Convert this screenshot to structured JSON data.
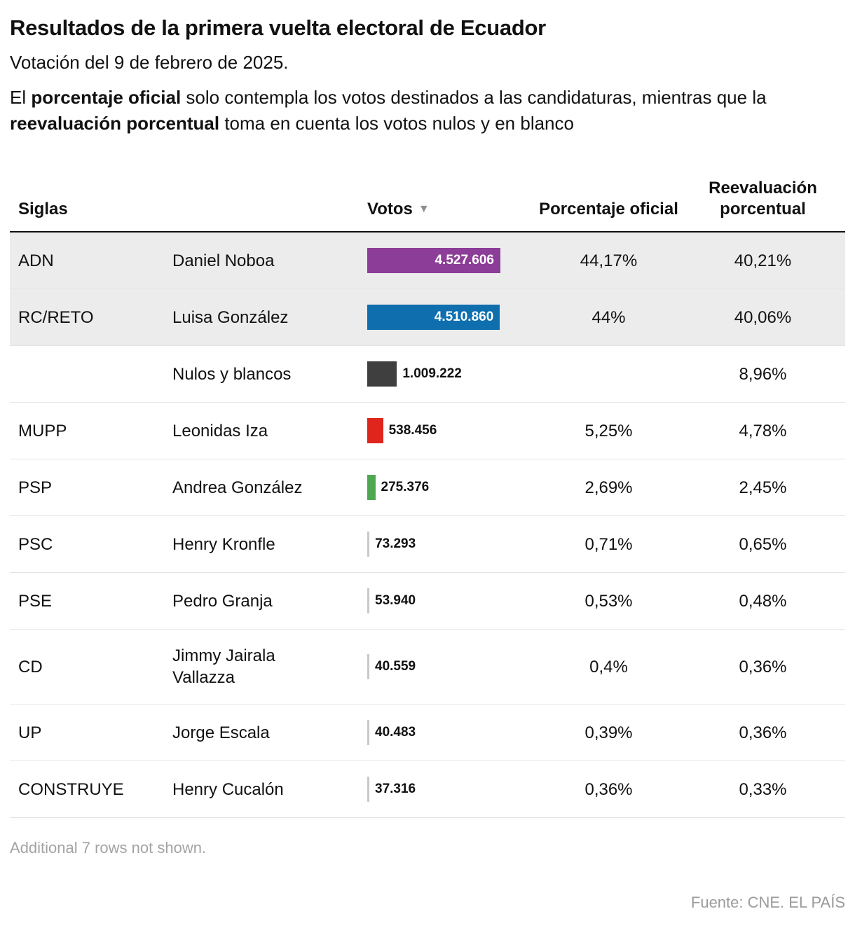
{
  "page": {
    "title": "Resultados de la primera vuelta electoral de Ecuador",
    "subtitle": "Votación del 9 de febrero de 2025.",
    "desc": {
      "p1": "El ",
      "p1_bold": "porcentaje oficial",
      "p2": " solo contempla los votos destinados a las candidaturas, mientras que la ",
      "p2_bold": "reevaluación porcentual",
      "p3": " toma en cuenta los votos nulos y en blanco"
    }
  },
  "table": {
    "columns": {
      "siglas": "Siglas",
      "votos": "Votos",
      "sort_icon": "▼",
      "oficial": "Porcentaje oficial",
      "reevaluacion": "Reevaluación porcentual"
    }
  },
  "chart_data": {
    "type": "bar",
    "orientation": "horizontal",
    "title": "Resultados de la primera vuelta electoral de Ecuador",
    "value_column": "Votos",
    "max_value": 4527606,
    "rows": [
      {
        "siglas": "ADN",
        "candidate": "Daniel Noboa",
        "votes": 4527606,
        "votes_label": "4.527.606",
        "oficial": "44,17%",
        "reevaluacion": "40,21%",
        "bar_color": "#8c3d97",
        "label_inside": true,
        "highlighted": true
      },
      {
        "siglas": "RC/RETO",
        "candidate": "Luisa González",
        "votes": 4510860,
        "votes_label": "4.510.860",
        "oficial": "44%",
        "reevaluacion": "40,06%",
        "bar_color": "#0e6eae",
        "label_inside": true,
        "highlighted": true
      },
      {
        "siglas": "",
        "candidate": "Nulos y blancos",
        "votes": 1009222,
        "votes_label": "1.009.222",
        "oficial": "",
        "reevaluacion": "8,96%",
        "bar_color": "#3f3f3f",
        "label_inside": false,
        "highlighted": false
      },
      {
        "siglas": "MUPP",
        "candidate": "Leonidas Iza",
        "votes": 538456,
        "votes_label": "538.456",
        "oficial": "5,25%",
        "reevaluacion": "4,78%",
        "bar_color": "#e0251c",
        "label_inside": false,
        "highlighted": false
      },
      {
        "siglas": "PSP",
        "candidate": "Andrea González",
        "votes": 275376,
        "votes_label": "275.376",
        "oficial": "2,69%",
        "reevaluacion": "2,45%",
        "bar_color": "#4ea852",
        "label_inside": false,
        "highlighted": false
      },
      {
        "siglas": "PSC",
        "candidate": "Henry Kronfle",
        "votes": 73293,
        "votes_label": "73.293",
        "oficial": "0,71%",
        "reevaluacion": "0,65%",
        "bar_color": "#c9c9c9",
        "label_inside": false,
        "highlighted": false
      },
      {
        "siglas": "PSE",
        "candidate": "Pedro Granja",
        "votes": 53940,
        "votes_label": "53.940",
        "oficial": "0,53%",
        "reevaluacion": "0,48%",
        "bar_color": "#c9c9c9",
        "label_inside": false,
        "highlighted": false
      },
      {
        "siglas": "CD",
        "candidate": "Jimmy Jairala Vallazza",
        "votes": 40559,
        "votes_label": "40.559",
        "oficial": "0,4%",
        "reevaluacion": "0,36%",
        "bar_color": "#c9c9c9",
        "label_inside": false,
        "highlighted": false
      },
      {
        "siglas": "UP",
        "candidate": "Jorge Escala",
        "votes": 40483,
        "votes_label": "40.483",
        "oficial": "0,39%",
        "reevaluacion": "0,36%",
        "bar_color": "#c9c9c9",
        "label_inside": false,
        "highlighted": false
      },
      {
        "siglas": "CONSTRUYE",
        "candidate": "Henry Cucalón",
        "votes": 37316,
        "votes_label": "37.316",
        "oficial": "0,36%",
        "reevaluacion": "0,33%",
        "bar_color": "#c9c9c9",
        "label_inside": false,
        "highlighted": false
      }
    ]
  },
  "footer": {
    "more_rows": "Additional 7 rows not shown.",
    "source": "Fuente: CNE. EL PAÍS"
  }
}
